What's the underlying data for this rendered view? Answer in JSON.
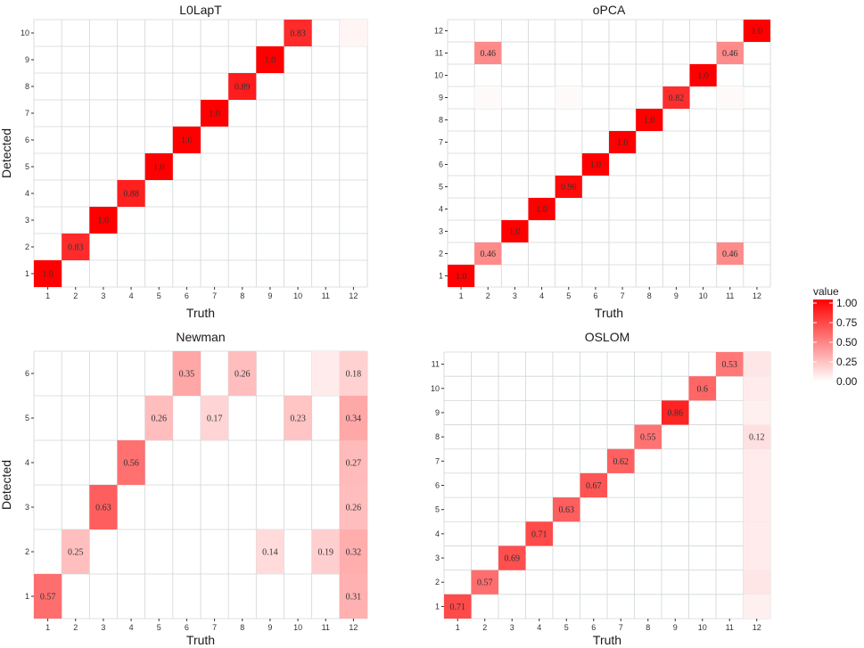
{
  "chart_data": [
    {
      "type": "heatmap",
      "title": "L0LapT",
      "xlabel": "Truth",
      "ylabel": "Detected",
      "x_categories": [
        "1",
        "2",
        "3",
        "4",
        "5",
        "6",
        "7",
        "8",
        "9",
        "10",
        "11",
        "12"
      ],
      "y_categories": [
        "1",
        "2",
        "3",
        "4",
        "5",
        "6",
        "7",
        "8",
        "9",
        "10"
      ],
      "cells": [
        {
          "x": "1",
          "y": "1",
          "value": 1.0,
          "label": "1.0"
        },
        {
          "x": "2",
          "y": "2",
          "value": 0.83,
          "label": "0.83"
        },
        {
          "x": "3",
          "y": "3",
          "value": 1.0,
          "label": "1.0"
        },
        {
          "x": "4",
          "y": "4",
          "value": 0.88,
          "label": "0.88"
        },
        {
          "x": "5",
          "y": "5",
          "value": 1.0,
          "label": "1.0"
        },
        {
          "x": "6",
          "y": "6",
          "value": 1.0,
          "label": "1.0"
        },
        {
          "x": "7",
          "y": "7",
          "value": 1.0,
          "label": "1.0"
        },
        {
          "x": "8",
          "y": "8",
          "value": 0.89,
          "label": "0.89"
        },
        {
          "x": "9",
          "y": "9",
          "value": 1.0,
          "label": "1.0"
        },
        {
          "x": "10",
          "y": "10",
          "value": 0.83,
          "label": "0.83"
        },
        {
          "x": "12",
          "y": "10",
          "value": 0.04,
          "label": ""
        }
      ]
    },
    {
      "type": "heatmap",
      "title": "oPCA",
      "xlabel": "Truth",
      "ylabel": "",
      "x_categories": [
        "1",
        "2",
        "3",
        "4",
        "5",
        "6",
        "7",
        "8",
        "9",
        "10",
        "11",
        "12"
      ],
      "y_categories": [
        "1",
        "2",
        "3",
        "4",
        "5",
        "6",
        "7",
        "8",
        "9",
        "10",
        "11",
        "12"
      ],
      "cells": [
        {
          "x": "1",
          "y": "1",
          "value": 1.0,
          "label": "1.0"
        },
        {
          "x": "2",
          "y": "2",
          "value": 0.46,
          "label": "0.46"
        },
        {
          "x": "11",
          "y": "2",
          "value": 0.46,
          "label": "0.46"
        },
        {
          "x": "3",
          "y": "3",
          "value": 1.0,
          "label": "1.0"
        },
        {
          "x": "4",
          "y": "4",
          "value": 1.0,
          "label": "1.0"
        },
        {
          "x": "5",
          "y": "5",
          "value": 0.96,
          "label": "0.96"
        },
        {
          "x": "6",
          "y": "6",
          "value": 1.0,
          "label": "1.0"
        },
        {
          "x": "7",
          "y": "7",
          "value": 1.0,
          "label": "1.0"
        },
        {
          "x": "8",
          "y": "8",
          "value": 1.0,
          "label": "1.0"
        },
        {
          "x": "9",
          "y": "9",
          "value": 0.82,
          "label": "0.82"
        },
        {
          "x": "2",
          "y": "9",
          "value": 0.02,
          "label": ""
        },
        {
          "x": "5",
          "y": "9",
          "value": 0.02,
          "label": ""
        },
        {
          "x": "11",
          "y": "9",
          "value": 0.02,
          "label": ""
        },
        {
          "x": "10",
          "y": "10",
          "value": 1.0,
          "label": "1.0"
        },
        {
          "x": "2",
          "y": "11",
          "value": 0.46,
          "label": "0.46"
        },
        {
          "x": "11",
          "y": "11",
          "value": 0.46,
          "label": "0.46"
        },
        {
          "x": "12",
          "y": "12",
          "value": 1.0,
          "label": "1.0"
        }
      ]
    },
    {
      "type": "heatmap",
      "title": "Newman",
      "xlabel": "Truth",
      "ylabel": "Detected",
      "x_categories": [
        "1",
        "2",
        "3",
        "4",
        "5",
        "6",
        "7",
        "8",
        "9",
        "10",
        "11",
        "12"
      ],
      "y_categories": [
        "1",
        "2",
        "3",
        "4",
        "5",
        "6"
      ],
      "cells": [
        {
          "x": "1",
          "y": "1",
          "value": 0.57,
          "label": "0.57"
        },
        {
          "x": "12",
          "y": "1",
          "value": 0.31,
          "label": "0.31"
        },
        {
          "x": "2",
          "y": "2",
          "value": 0.25,
          "label": "0.25"
        },
        {
          "x": "9",
          "y": "2",
          "value": 0.14,
          "label": "0.14"
        },
        {
          "x": "11",
          "y": "2",
          "value": 0.19,
          "label": "0.19"
        },
        {
          "x": "12",
          "y": "2",
          "value": 0.32,
          "label": "0.32"
        },
        {
          "x": "3",
          "y": "3",
          "value": 0.63,
          "label": "0.63"
        },
        {
          "x": "12",
          "y": "3",
          "value": 0.26,
          "label": "0.26"
        },
        {
          "x": "4",
          "y": "4",
          "value": 0.56,
          "label": "0.56"
        },
        {
          "x": "12",
          "y": "4",
          "value": 0.27,
          "label": "0.27"
        },
        {
          "x": "5",
          "y": "5",
          "value": 0.26,
          "label": "0.26"
        },
        {
          "x": "7",
          "y": "5",
          "value": 0.17,
          "label": "0.17"
        },
        {
          "x": "10",
          "y": "5",
          "value": 0.23,
          "label": "0.23"
        },
        {
          "x": "12",
          "y": "5",
          "value": 0.34,
          "label": "0.34"
        },
        {
          "x": "6",
          "y": "6",
          "value": 0.35,
          "label": "0.35"
        },
        {
          "x": "8",
          "y": "6",
          "value": 0.26,
          "label": "0.26"
        },
        {
          "x": "11",
          "y": "6",
          "value": 0.08,
          "label": ""
        },
        {
          "x": "12",
          "y": "6",
          "value": 0.18,
          "label": "0.18"
        }
      ]
    },
    {
      "type": "heatmap",
      "title": "OSLOM",
      "xlabel": "Truth",
      "ylabel": "",
      "x_categories": [
        "1",
        "2",
        "3",
        "4",
        "5",
        "6",
        "7",
        "8",
        "9",
        "10",
        "11",
        "12"
      ],
      "y_categories": [
        "1",
        "2",
        "3",
        "4",
        "5",
        "6",
        "7",
        "8",
        "9",
        "10",
        "11"
      ],
      "cells": [
        {
          "x": "1",
          "y": "1",
          "value": 0.71,
          "label": "0.71"
        },
        {
          "x": "2",
          "y": "2",
          "value": 0.57,
          "label": "0.57"
        },
        {
          "x": "3",
          "y": "3",
          "value": 0.69,
          "label": "0.69"
        },
        {
          "x": "4",
          "y": "4",
          "value": 0.71,
          "label": "0.71"
        },
        {
          "x": "5",
          "y": "5",
          "value": 0.63,
          "label": "0.63"
        },
        {
          "x": "6",
          "y": "6",
          "value": 0.67,
          "label": "0.67"
        },
        {
          "x": "7",
          "y": "7",
          "value": 0.62,
          "label": "0.62"
        },
        {
          "x": "8",
          "y": "8",
          "value": 0.55,
          "label": "0.55"
        },
        {
          "x": "9",
          "y": "9",
          "value": 0.86,
          "label": "0.86"
        },
        {
          "x": "10",
          "y": "10",
          "value": 0.6,
          "label": "0.6"
        },
        {
          "x": "11",
          "y": "11",
          "value": 0.53,
          "label": "0.53"
        },
        {
          "x": "12",
          "y": "1",
          "value": 0.06,
          "label": ""
        },
        {
          "x": "12",
          "y": "2",
          "value": 0.1,
          "label": ""
        },
        {
          "x": "12",
          "y": "3",
          "value": 0.08,
          "label": ""
        },
        {
          "x": "12",
          "y": "4",
          "value": 0.08,
          "label": ""
        },
        {
          "x": "12",
          "y": "5",
          "value": 0.08,
          "label": ""
        },
        {
          "x": "12",
          "y": "6",
          "value": 0.08,
          "label": ""
        },
        {
          "x": "12",
          "y": "7",
          "value": 0.08,
          "label": ""
        },
        {
          "x": "12",
          "y": "8",
          "value": 0.12,
          "label": "0.12"
        },
        {
          "x": "12",
          "y": "9",
          "value": 0.06,
          "label": ""
        },
        {
          "x": "12",
          "y": "10",
          "value": 0.08,
          "label": ""
        },
        {
          "x": "12",
          "y": "11",
          "value": 0.1,
          "label": ""
        }
      ]
    }
  ],
  "legend": {
    "title": "value",
    "ticks": [
      "1.00",
      "0.75",
      "0.50",
      "0.25",
      "0.00"
    ],
    "low_color": "#ffffff",
    "high_color": "#ff0000"
  },
  "colors": {
    "grid": "#d0d6d6",
    "label_text": "#333333"
  }
}
